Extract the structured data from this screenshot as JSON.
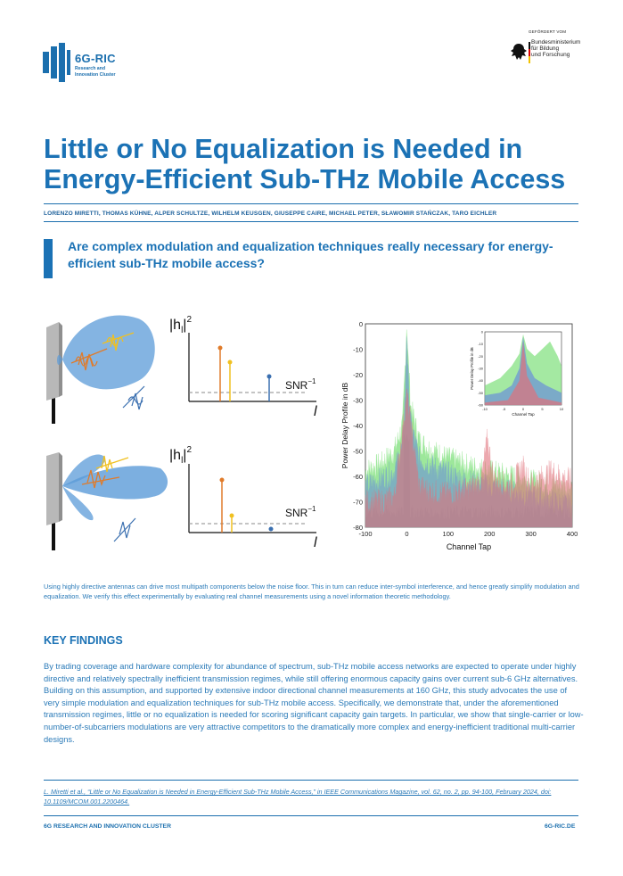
{
  "logo": {
    "name": "6G-RIC",
    "sub_line1": "Research and",
    "sub_line2": "Innovation Cluster"
  },
  "sponsor": {
    "label": "GEFÖRDERT VOM",
    "line1": "Bundesministerium",
    "line2": "für Bildung",
    "line3": "und Forschung"
  },
  "title_line1": "Little or No Equalization is Needed in",
  "title_line2": "Energy-Efficient Sub-THz Mobile Access",
  "authors": "LORENZO MIRETTI, THOMAS KÜHNE, ALPER SCHULTZE, WILHELM KEUSGEN, GIUSEPPE CAIRE, MICHAEL PETER, SŁAWOMIR STAŃCZAK, TARO EICHLER",
  "question": "Are complex modulation and equalization techniques really necessary for energy-efficient sub-THz mobile access?",
  "illustration": {
    "hl_label": "|h",
    "hl_sub": "l",
    "hl_close": "|",
    "hl_sup": "2",
    "snr_label": "SNR",
    "snr_sup": "−1",
    "axis_var": "l"
  },
  "chart_data": {
    "type": "line",
    "title": "",
    "xlabel": "Channel Tap",
    "ylabel": "Power Delay Profile in dB",
    "xlim": [
      -100,
      400
    ],
    "ylim": [
      -80,
      0
    ],
    "xticks": [
      "-100",
      "0",
      "100",
      "200",
      "300",
      "400"
    ],
    "yticks": [
      "0",
      "-10",
      "-20",
      "-30",
      "-40",
      "-50",
      "-60",
      "-70",
      "-80"
    ],
    "series": [
      {
        "name": "green",
        "color": "#7de07a",
        "x": [
          -100,
          -60,
          -30,
          -10,
          -3,
          0,
          3,
          10,
          30,
          60,
          100,
          150,
          200,
          250,
          300,
          350,
          400
        ],
        "values": [
          -60,
          -57,
          -52,
          -42,
          -15,
          -1,
          -15,
          -35,
          -48,
          -52,
          -55,
          -58,
          -60,
          -62,
          -64,
          -66,
          -67
        ]
      },
      {
        "name": "blue",
        "color": "#6a8fd8",
        "x": [
          -100,
          -60,
          -30,
          -10,
          -3,
          0,
          3,
          10,
          30,
          60,
          100,
          150,
          200,
          250,
          300,
          350,
          400
        ],
        "values": [
          -66,
          -63,
          -60,
          -50,
          -25,
          -3,
          -22,
          -42,
          -55,
          -58,
          -61,
          -64,
          -66,
          -68,
          -70,
          -72,
          -74
        ]
      },
      {
        "name": "red",
        "color": "#e0707a",
        "x": [
          -100,
          -60,
          -30,
          0,
          30,
          60,
          100,
          150,
          180,
          195,
          210,
          250,
          280,
          300,
          350,
          400
        ],
        "values": [
          -72,
          -72,
          -70,
          -30,
          -66,
          -68,
          -69,
          -67,
          -64,
          -47,
          -63,
          -66,
          -58,
          -65,
          -60,
          -64
        ]
      }
    ],
    "inset": {
      "xlim": [
        -10,
        10
      ],
      "ylim": [
        -60,
        0
      ],
      "xticks": [
        "-10",
        "-5",
        "0",
        "5",
        "10"
      ],
      "yticks": [
        "0",
        "-10",
        "-20",
        "-30",
        "-40",
        "-50",
        "-60"
      ],
      "xlabel": "Channel Tap",
      "ylabel": "Power Delay Profile in dB"
    }
  },
  "caption": "Using highly directive antennas can drive most multipath components below the noise floor. This in turn can reduce inter-symbol interference, and hence greatly simplify modulation and equalization. We verify this effect experimentally by evaluating real channel measurements using a novel information theoretic methodology.",
  "key_findings_heading": "KEY FINDINGS",
  "key_findings_body": "By trading coverage and hardware complexity for abundance of spectrum, sub-THz mobile access networks are expected to operate under highly directive and relatively spectrally inefficient transmission regimes, while still offering enormous capacity gains over current sub-6 GHz alternatives. Building on this assumption, and supported by extensive indoor directional channel measurements at 160 GHz, this study advocates the use of very simple modulation and equalization techniques for sub-THz mobile access. Specifically, we demonstrate that, under the aforementioned transmission regimes, little or no equalization is needed for scoring significant capacity gain targets. In particular, we show that single-carrier or low-number-of-subcarriers modulations are very attractive competitors to the dramatically more complex and energy-inefficient traditional multi-carrier designs.",
  "reference": "L. Miretti et al., “Little or No Equalization is Needed in Energy-Efficient Sub-THz Mobile Access,” in IEEE Communications Magazine, vol. 62, no. 2, pp. 94-100, February 2024, doi: 10.1109/MCOM.001.2200464.",
  "footer_left": "6G RESEARCH AND INNOVATION CLUSTER",
  "footer_right": "6G-RIC.DE",
  "colors": {
    "brand_blue": "#1b72b5",
    "text_blue": "#2a7ab8",
    "beam_blue": "#5b9bd8",
    "tap_orange": "#e07b2a",
    "tap_yellow": "#f0c020",
    "tap_blue": "#3a6fb0"
  }
}
